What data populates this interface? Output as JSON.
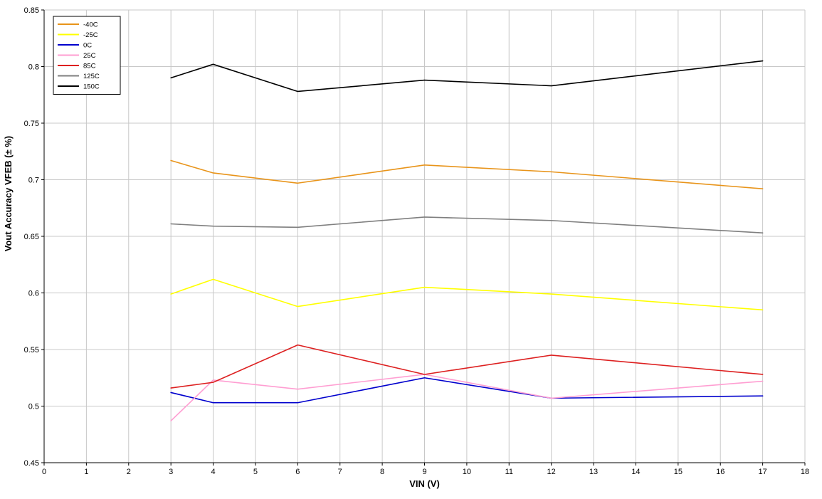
{
  "chart_data": {
    "type": "line",
    "title": "",
    "xlabel": "VIN (V)",
    "ylabel": "Vout Accuracy VFEB (± %)",
    "xlim": [
      0,
      18
    ],
    "ylim": [
      0.45,
      0.85
    ],
    "x_tick_values": [
      0,
      1,
      2,
      3,
      4,
      5,
      6,
      7,
      8,
      9,
      10,
      11,
      12,
      13,
      14,
      15,
      16,
      17,
      18
    ],
    "x_tick_labels": [
      "0",
      "1",
      "2",
      "3",
      "4",
      "5",
      "6",
      "7",
      "8",
      "9",
      "10",
      "11",
      "12",
      "13",
      "14",
      "15",
      "16",
      "17",
      "18"
    ],
    "y_tick_values": [
      0.45,
      0.5,
      0.55,
      0.6,
      0.65,
      0.7,
      0.75,
      0.8,
      0.85
    ],
    "y_tick_labels": [
      "0.45",
      "0.5",
      "0.55",
      "0.6",
      "0.65",
      "0.7",
      "0.75",
      "0.8",
      "0.85"
    ],
    "grid": true,
    "grid_color": "#c8c8c8",
    "axis_color": "#000000",
    "legend_position": "top-left",
    "x": [
      3,
      4,
      6,
      9,
      12,
      17
    ],
    "series": [
      {
        "name": "-40C",
        "color": "#e8941a",
        "values": [
          0.717,
          0.706,
          0.697,
          0.713,
          0.707,
          0.692
        ]
      },
      {
        "name": "-25C",
        "color": "#ffff00",
        "values": [
          0.599,
          0.612,
          0.588,
          0.605,
          0.599,
          0.585
        ]
      },
      {
        "name": "0C",
        "color": "#0000cd",
        "values": [
          0.512,
          0.503,
          0.503,
          0.525,
          0.507,
          0.509
        ]
      },
      {
        "name": "25C",
        "color": "#ff9ed2",
        "values": [
          0.487,
          0.523,
          0.515,
          0.528,
          0.507,
          0.522
        ]
      },
      {
        "name": "85C",
        "color": "#dd2020",
        "values": [
          0.516,
          0.521,
          0.554,
          0.528,
          0.545,
          0.528
        ]
      },
      {
        "name": "125C",
        "color": "#7f7f7f",
        "values": [
          0.661,
          0.659,
          0.658,
          0.667,
          0.664,
          0.653
        ]
      },
      {
        "name": "150C",
        "color": "#000000",
        "values": [
          0.79,
          0.802,
          0.778,
          0.788,
          0.783,
          0.805
        ]
      }
    ]
  }
}
